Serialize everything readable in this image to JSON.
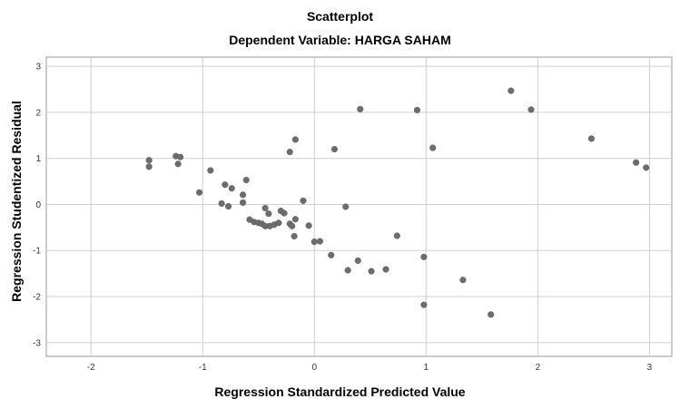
{
  "chart_data": {
    "type": "scatter",
    "title": "Scatterplot",
    "subtitle": "Dependent Variable: HARGA SAHAM",
    "xlabel": "Regression Standardized Predicted Value",
    "ylabel": "Regression Studentized Residual",
    "xlim": [
      -2.4,
      3.2
    ],
    "ylim": [
      -3.3,
      3.2
    ],
    "xticks": [
      -2,
      -1,
      0,
      1,
      2,
      3
    ],
    "yticks": [
      -3,
      -2,
      -1,
      0,
      1,
      2,
      3
    ],
    "grid": true,
    "marker_color": "#6d6d6d",
    "points": [
      [
        -1.48,
        0.96
      ],
      [
        -1.48,
        0.82
      ],
      [
        -1.24,
        1.05
      ],
      [
        -1.2,
        1.03
      ],
      [
        -1.22,
        0.88
      ],
      [
        -0.93,
        0.74
      ],
      [
        -1.03,
        0.26
      ],
      [
        -0.8,
        0.43
      ],
      [
        -0.74,
        0.35
      ],
      [
        -0.61,
        0.53
      ],
      [
        -0.64,
        0.21
      ],
      [
        -0.83,
        0.02
      ],
      [
        -0.77,
        -0.04
      ],
      [
        -0.64,
        0.04
      ],
      [
        -0.58,
        -0.33
      ],
      [
        -0.54,
        -0.38
      ],
      [
        -0.5,
        -0.4
      ],
      [
        -0.47,
        -0.42
      ],
      [
        -0.44,
        -0.47
      ],
      [
        -0.4,
        -0.47
      ],
      [
        -0.36,
        -0.44
      ],
      [
        -0.32,
        -0.4
      ],
      [
        -0.44,
        -0.08
      ],
      [
        -0.41,
        -0.2
      ],
      [
        -0.3,
        -0.14
      ],
      [
        -0.27,
        -0.19
      ],
      [
        -0.22,
        -0.42
      ],
      [
        -0.2,
        -0.47
      ],
      [
        -0.17,
        -0.32
      ],
      [
        -0.18,
        -0.69
      ],
      [
        -0.22,
        1.14
      ],
      [
        -0.17,
        1.41
      ],
      [
        -0.1,
        0.08
      ],
      [
        -0.05,
        -0.46
      ],
      [
        0.0,
        -0.81
      ],
      [
        0.05,
        -0.8
      ],
      [
        0.15,
        -1.1
      ],
      [
        0.18,
        1.2
      ],
      [
        0.28,
        -0.05
      ],
      [
        0.3,
        -1.43
      ],
      [
        0.39,
        -1.22
      ],
      [
        0.41,
        2.07
      ],
      [
        0.51,
        -1.45
      ],
      [
        0.64,
        -1.41
      ],
      [
        0.74,
        -0.68
      ],
      [
        0.92,
        2.05
      ],
      [
        0.98,
        -1.14
      ],
      [
        0.98,
        -2.18
      ],
      [
        1.06,
        1.23
      ],
      [
        1.33,
        -1.64
      ],
      [
        1.58,
        -2.39
      ],
      [
        1.76,
        2.47
      ],
      [
        1.94,
        2.06
      ],
      [
        2.48,
        1.43
      ],
      [
        2.88,
        0.91
      ],
      [
        2.97,
        0.8
      ]
    ]
  }
}
